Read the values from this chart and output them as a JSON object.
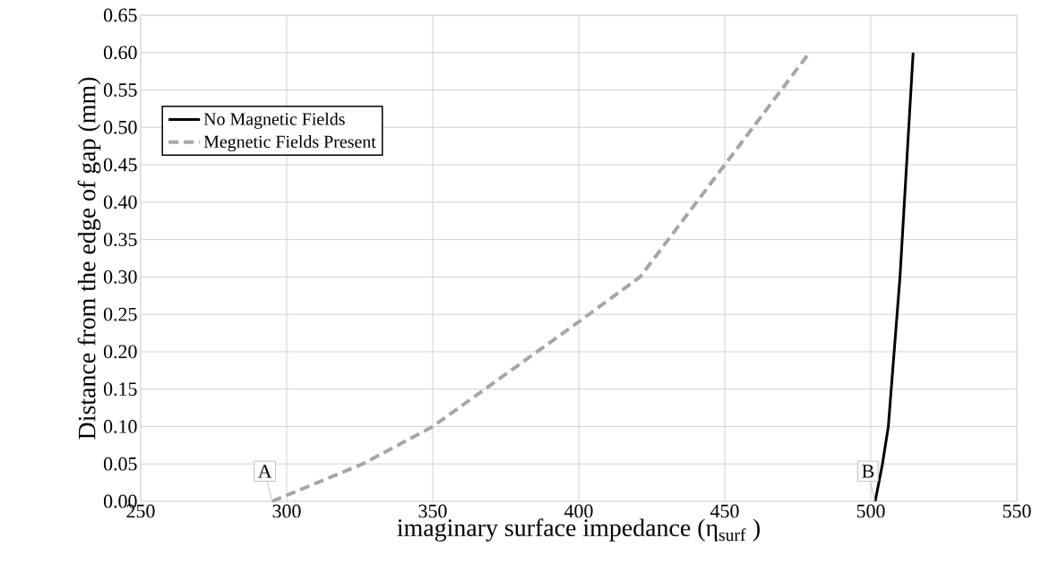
{
  "chart_data": {
    "type": "line",
    "xlabel": "imaginary surface impedance (η$_{surf}$ )",
    "ylabel": "Distance from the edge of gap (mm)",
    "xlim": [
      250,
      550
    ],
    "xticks": [
      250,
      300,
      350,
      400,
      450,
      500,
      550
    ],
    "ylim": [
      0,
      0.65
    ],
    "yticks": [
      {
        "value": 0,
        "label": "0.00"
      },
      {
        "value": 0.05,
        "label": "0.05"
      },
      {
        "value": 0.1,
        "label": "0.10"
      },
      {
        "value": 0.15,
        "label": "0.15"
      },
      {
        "value": 0.2,
        "label": "0.20"
      },
      {
        "value": 0.25,
        "label": "0.25"
      },
      {
        "value": 0.3,
        "label": "0.30"
      },
      {
        "value": 0.35,
        "label": "0.35"
      },
      {
        "value": 0.4,
        "label": "0.40"
      },
      {
        "value": 0.45,
        "label": "0.45"
      },
      {
        "value": 0.5,
        "label": "0.50"
      },
      {
        "value": 0.55,
        "label": "0.55"
      },
      {
        "value": 0.6,
        "label": "0.60"
      },
      {
        "value": 0.65,
        "label": "0.65"
      }
    ],
    "series": [
      {
        "name": "No Magnetic Fields",
        "color": "#000000",
        "line_style": "solid",
        "x": [
          501.5,
          504,
          506,
          510,
          514.5
        ],
        "values": [
          0,
          0.05,
          0.1,
          0.3,
          0.6
        ]
      },
      {
        "name": "Megnetic Fields Present",
        "color": "#a6a6a6",
        "line_style": "dashed",
        "x": [
          295,
          326,
          350,
          375,
          400,
          421,
          450,
          479
        ],
        "values": [
          0,
          0.05,
          0.1,
          0.17,
          0.24,
          0.3,
          0.45,
          0.6
        ]
      }
    ],
    "annotations": [
      {
        "text": "A",
        "x": 295,
        "y": 0
      },
      {
        "text": "B",
        "x": 501.5,
        "y": 0
      }
    ],
    "grid": true,
    "legend": "top left"
  }
}
